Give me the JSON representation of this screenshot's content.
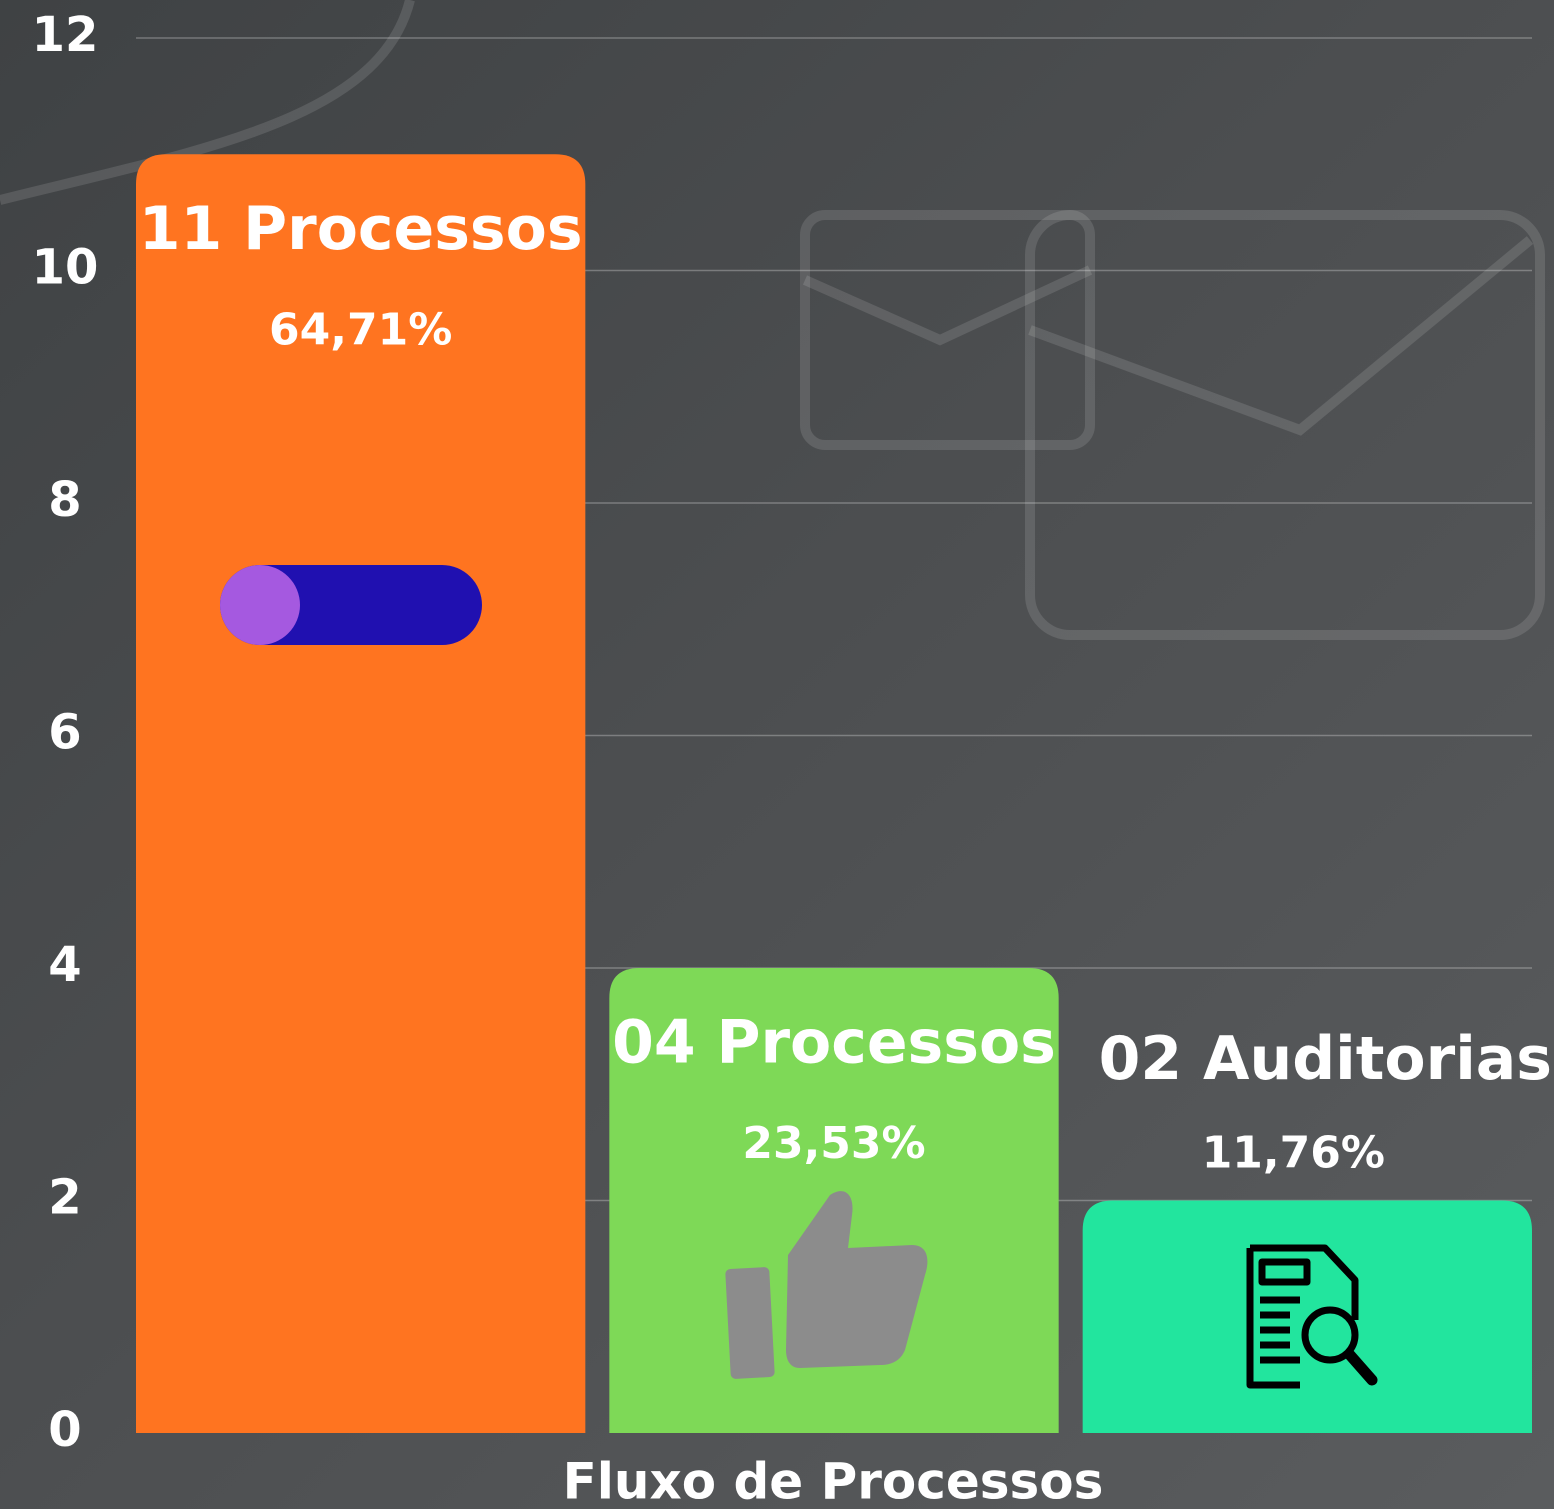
{
  "chart_data": {
    "type": "bar",
    "x_label": "Fluxo de Processos",
    "categories": [
      null,
      null,
      null
    ],
    "values": [
      11,
      4,
      2
    ],
    "value_labels": [
      "11 Processos",
      "04 Processos",
      "02  Auditorias"
    ],
    "percentages": [
      64.71,
      23.53,
      11.76
    ],
    "percentage_labels": [
      "64,71%",
      "23,53%",
      "11,76%"
    ],
    "colors": [
      "#ff7420",
      "#7ed957",
      "#22e59e"
    ],
    "ylim": [
      0,
      12
    ],
    "yticks": [
      0,
      2,
      4,
      6,
      8,
      10,
      12
    ],
    "grid": true
  }
}
